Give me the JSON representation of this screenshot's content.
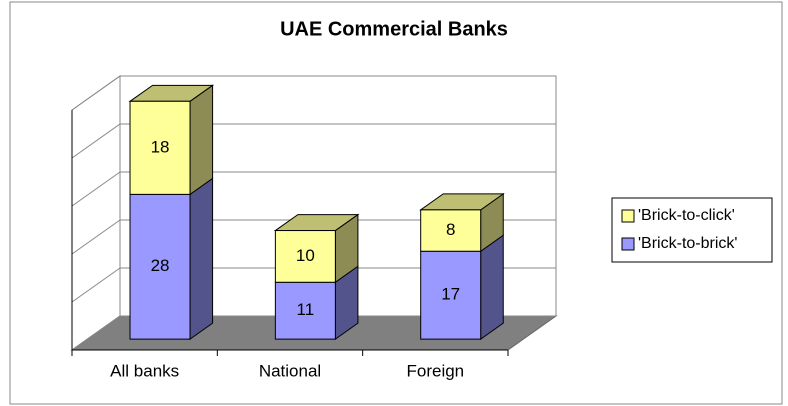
{
  "chart_data": {
    "type": "bar3d-stacked",
    "title": "UAE Commercial Banks",
    "categories": [
      "All banks",
      "National",
      "Foreign"
    ],
    "series": [
      {
        "name": "'Brick-to-brick'",
        "color": "#9999ff",
        "values": [
          28,
          11,
          17
        ]
      },
      {
        "name": "'Brick-to-click'",
        "color": "#ffff99",
        "values": [
          18,
          10,
          8
        ]
      }
    ],
    "ylim": [
      0,
      50
    ],
    "yticks": [
      0,
      10,
      20,
      30,
      40,
      50
    ],
    "grid": true,
    "legend": "right",
    "data_labels": true
  }
}
